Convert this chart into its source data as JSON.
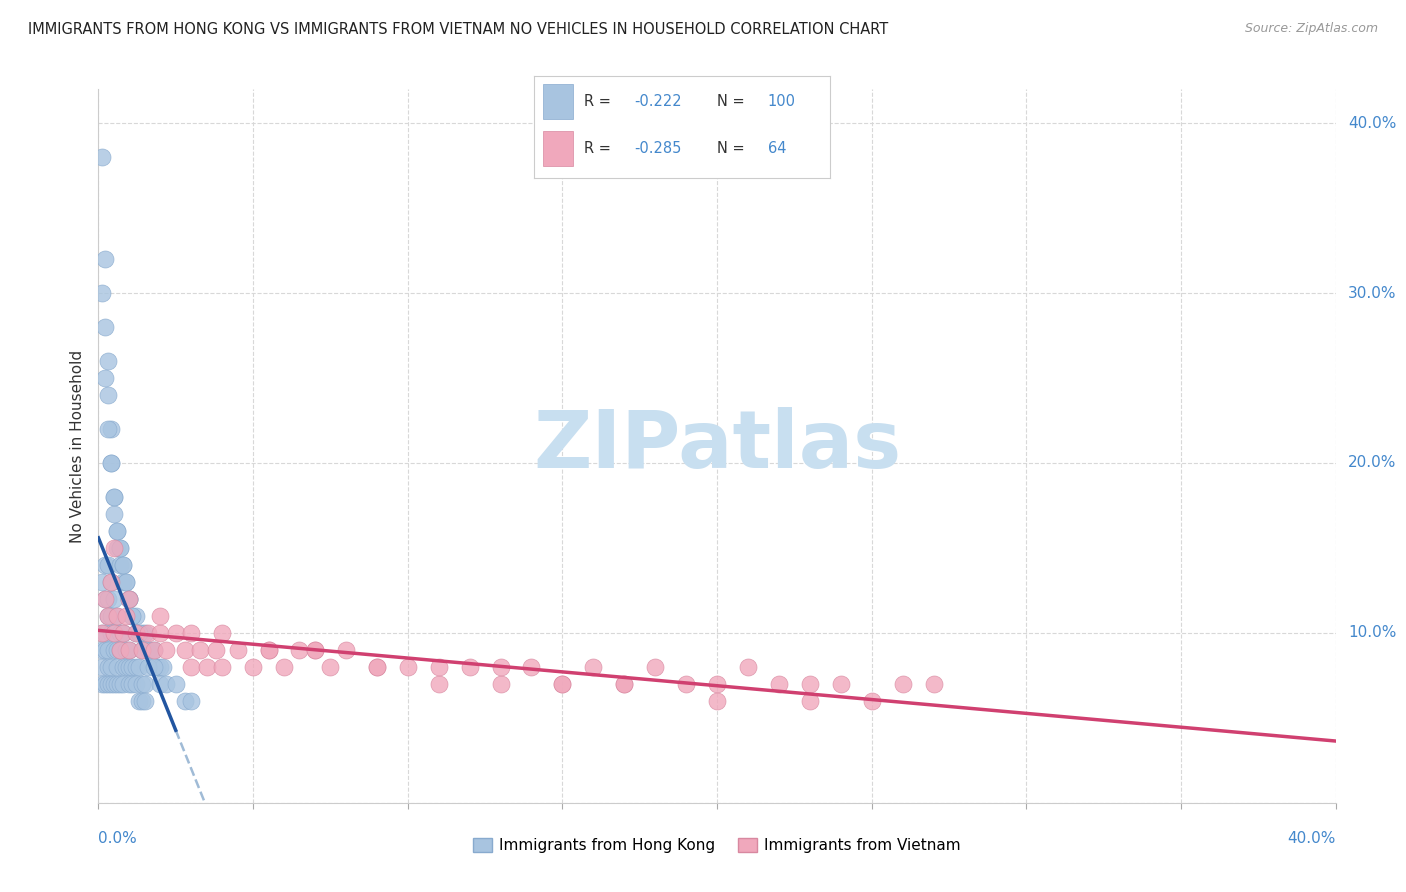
{
  "title": "IMMIGRANTS FROM HONG KONG VS IMMIGRANTS FROM VIETNAM NO VEHICLES IN HOUSEHOLD CORRELATION CHART",
  "source": "Source: ZipAtlas.com",
  "ylabel": "No Vehicles in Household",
  "legend_hk_R": -0.222,
  "legend_hk_N": 100,
  "legend_vn_R": -0.285,
  "legend_vn_N": 64,
  "hk_color": "#a8c4e0",
  "hk_edge": "#88aace",
  "hk_line_color": "#2255a0",
  "vn_color": "#f0a8bc",
  "vn_edge": "#d888a0",
  "vn_line_color": "#d04070",
  "dash_color": "#88aacc",
  "watermark_color": "#c8dff0",
  "tick_color": "#4488cc",
  "grid_color": "#d8d8d8",
  "xlim": [
    0.0,
    0.4
  ],
  "ylim": [
    0.0,
    0.42
  ],
  "xticks": [
    0.0,
    0.05,
    0.1,
    0.15,
    0.2,
    0.25,
    0.3,
    0.35,
    0.4
  ],
  "yticks": [
    0.0,
    0.1,
    0.2,
    0.3,
    0.4
  ],
  "hk_x": [
    0.001,
    0.001,
    0.001,
    0.001,
    0.001,
    0.002,
    0.002,
    0.002,
    0.002,
    0.002,
    0.003,
    0.003,
    0.003,
    0.003,
    0.003,
    0.003,
    0.004,
    0.004,
    0.004,
    0.004,
    0.004,
    0.005,
    0.005,
    0.005,
    0.005,
    0.006,
    0.006,
    0.006,
    0.006,
    0.007,
    0.007,
    0.007,
    0.008,
    0.008,
    0.008,
    0.009,
    0.009,
    0.01,
    0.01,
    0.01,
    0.011,
    0.011,
    0.012,
    0.012,
    0.013,
    0.013,
    0.014,
    0.014,
    0.015,
    0.015,
    0.001,
    0.001,
    0.002,
    0.002,
    0.003,
    0.003,
    0.004,
    0.004,
    0.005,
    0.005,
    0.006,
    0.006,
    0.007,
    0.007,
    0.008,
    0.008,
    0.009,
    0.01,
    0.01,
    0.011,
    0.012,
    0.013,
    0.014,
    0.015,
    0.016,
    0.017,
    0.018,
    0.019,
    0.02,
    0.021,
    0.002,
    0.003,
    0.004,
    0.005,
    0.006,
    0.007,
    0.008,
    0.009,
    0.01,
    0.011,
    0.012,
    0.013,
    0.014,
    0.016,
    0.018,
    0.02,
    0.022,
    0.025,
    0.028,
    0.03
  ],
  "hk_y": [
    0.13,
    0.1,
    0.09,
    0.08,
    0.07,
    0.14,
    0.12,
    0.1,
    0.09,
    0.07,
    0.14,
    0.12,
    0.11,
    0.09,
    0.08,
    0.07,
    0.13,
    0.11,
    0.1,
    0.08,
    0.07,
    0.12,
    0.1,
    0.09,
    0.07,
    0.11,
    0.09,
    0.08,
    0.07,
    0.1,
    0.09,
    0.07,
    0.1,
    0.08,
    0.07,
    0.09,
    0.08,
    0.09,
    0.08,
    0.07,
    0.08,
    0.07,
    0.08,
    0.07,
    0.08,
    0.06,
    0.07,
    0.06,
    0.07,
    0.06,
    0.38,
    0.3,
    0.32,
    0.28,
    0.26,
    0.24,
    0.22,
    0.2,
    0.18,
    0.17,
    0.16,
    0.15,
    0.15,
    0.14,
    0.14,
    0.13,
    0.13,
    0.12,
    0.12,
    0.11,
    0.11,
    0.1,
    0.1,
    0.1,
    0.09,
    0.09,
    0.09,
    0.08,
    0.08,
    0.08,
    0.25,
    0.22,
    0.2,
    0.18,
    0.16,
    0.15,
    0.14,
    0.13,
    0.12,
    0.11,
    0.1,
    0.1,
    0.09,
    0.08,
    0.08,
    0.07,
    0.07,
    0.07,
    0.06,
    0.06
  ],
  "vn_x": [
    0.001,
    0.002,
    0.003,
    0.004,
    0.005,
    0.006,
    0.007,
    0.008,
    0.009,
    0.01,
    0.012,
    0.014,
    0.016,
    0.018,
    0.02,
    0.022,
    0.025,
    0.028,
    0.03,
    0.033,
    0.035,
    0.038,
    0.04,
    0.045,
    0.05,
    0.055,
    0.06,
    0.065,
    0.07,
    0.075,
    0.08,
    0.09,
    0.1,
    0.11,
    0.12,
    0.13,
    0.14,
    0.15,
    0.16,
    0.17,
    0.18,
    0.19,
    0.2,
    0.21,
    0.22,
    0.23,
    0.24,
    0.25,
    0.26,
    0.27,
    0.005,
    0.01,
    0.02,
    0.03,
    0.04,
    0.055,
    0.07,
    0.09,
    0.11,
    0.13,
    0.15,
    0.17,
    0.2,
    0.23
  ],
  "vn_y": [
    0.1,
    0.12,
    0.11,
    0.13,
    0.1,
    0.11,
    0.09,
    0.1,
    0.11,
    0.09,
    0.1,
    0.09,
    0.1,
    0.09,
    0.1,
    0.09,
    0.1,
    0.09,
    0.08,
    0.09,
    0.08,
    0.09,
    0.08,
    0.09,
    0.08,
    0.09,
    0.08,
    0.09,
    0.09,
    0.08,
    0.09,
    0.08,
    0.08,
    0.07,
    0.08,
    0.07,
    0.08,
    0.07,
    0.08,
    0.07,
    0.08,
    0.07,
    0.07,
    0.08,
    0.07,
    0.07,
    0.07,
    0.06,
    0.07,
    0.07,
    0.15,
    0.12,
    0.11,
    0.1,
    0.1,
    0.09,
    0.09,
    0.08,
    0.08,
    0.08,
    0.07,
    0.07,
    0.06,
    0.06
  ]
}
